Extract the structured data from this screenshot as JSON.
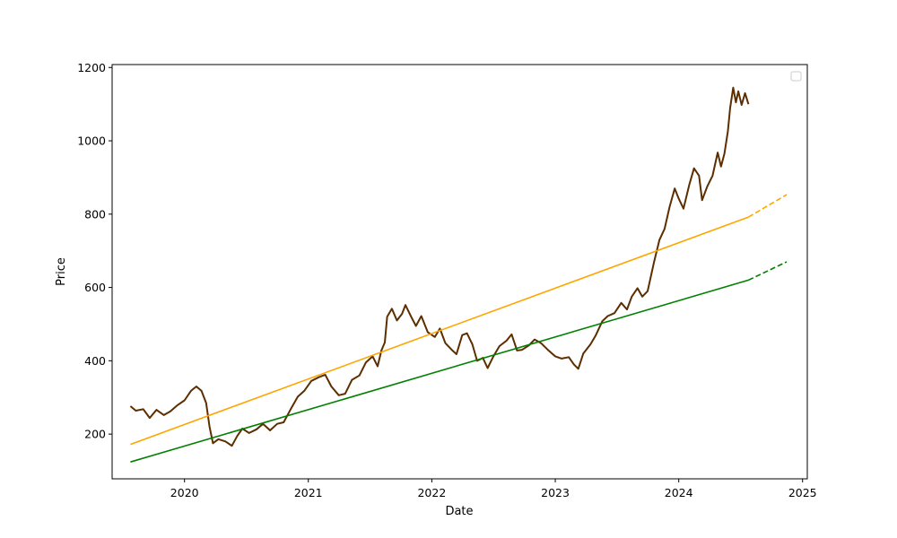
{
  "chart_data": {
    "type": "line",
    "xlabel": "Date",
    "ylabel": "Price",
    "xlim": [
      "2019-06-01",
      "2025-01-15"
    ],
    "ylim": [
      78,
      1208
    ],
    "x_ticks": [
      {
        "date": "2020-01-01",
        "label": "2020"
      },
      {
        "date": "2021-01-01",
        "label": "2021"
      },
      {
        "date": "2022-01-01",
        "label": "2022"
      },
      {
        "date": "2023-01-01",
        "label": "2023"
      },
      {
        "date": "2024-01-01",
        "label": "2024"
      },
      {
        "date": "2025-01-01",
        "label": "2025"
      }
    ],
    "y_ticks": [
      200,
      400,
      600,
      800,
      1000,
      1200
    ],
    "grid": false,
    "legend": {
      "position": "top-right",
      "entries": []
    },
    "colors": {
      "price": "#5c2e00",
      "upper_trend": "#ffa500",
      "lower_trend": "#008000"
    },
    "series": [
      {
        "role": "price",
        "style": "solid",
        "points": [
          [
            "2019-07-25",
            276
          ],
          [
            "2019-08-10",
            264
          ],
          [
            "2019-09-01",
            268
          ],
          [
            "2019-09-20",
            244
          ],
          [
            "2019-10-10",
            266
          ],
          [
            "2019-11-01",
            252
          ],
          [
            "2019-11-20",
            262
          ],
          [
            "2019-12-10",
            278
          ],
          [
            "2020-01-01",
            292
          ],
          [
            "2020-01-20",
            318
          ],
          [
            "2020-02-05",
            330
          ],
          [
            "2020-02-20",
            318
          ],
          [
            "2020-03-05",
            285
          ],
          [
            "2020-03-15",
            220
          ],
          [
            "2020-03-25",
            175
          ],
          [
            "2020-04-10",
            186
          ],
          [
            "2020-05-01",
            180
          ],
          [
            "2020-05-20",
            168
          ],
          [
            "2020-06-05",
            195
          ],
          [
            "2020-06-20",
            215
          ],
          [
            "2020-07-10",
            203
          ],
          [
            "2020-08-01",
            213
          ],
          [
            "2020-08-20",
            228
          ],
          [
            "2020-09-10",
            210
          ],
          [
            "2020-10-01",
            228
          ],
          [
            "2020-10-20",
            232
          ],
          [
            "2020-11-10",
            268
          ],
          [
            "2020-12-01",
            302
          ],
          [
            "2020-12-20",
            318
          ],
          [
            "2021-01-10",
            345
          ],
          [
            "2021-02-01",
            355
          ],
          [
            "2021-02-20",
            362
          ],
          [
            "2021-03-10",
            330
          ],
          [
            "2021-04-01",
            306
          ],
          [
            "2021-04-20",
            310
          ],
          [
            "2021-05-10",
            348
          ],
          [
            "2021-06-01",
            360
          ],
          [
            "2021-06-20",
            395
          ],
          [
            "2021-07-10",
            412
          ],
          [
            "2021-07-25",
            385
          ],
          [
            "2021-08-05",
            428
          ],
          [
            "2021-08-15",
            450
          ],
          [
            "2021-08-22",
            520
          ],
          [
            "2021-09-05",
            542
          ],
          [
            "2021-09-20",
            510
          ],
          [
            "2021-10-05",
            528
          ],
          [
            "2021-10-15",
            552
          ],
          [
            "2021-11-01",
            520
          ],
          [
            "2021-11-15",
            495
          ],
          [
            "2021-12-01",
            522
          ],
          [
            "2021-12-20",
            478
          ],
          [
            "2022-01-10",
            465
          ],
          [
            "2022-01-25",
            488
          ],
          [
            "2022-02-10",
            448
          ],
          [
            "2022-03-01",
            430
          ],
          [
            "2022-03-15",
            418
          ],
          [
            "2022-04-01",
            470
          ],
          [
            "2022-04-15",
            475
          ],
          [
            "2022-05-01",
            445
          ],
          [
            "2022-05-15",
            400
          ],
          [
            "2022-06-01",
            408
          ],
          [
            "2022-06-15",
            380
          ],
          [
            "2022-07-01",
            410
          ],
          [
            "2022-07-20",
            440
          ],
          [
            "2022-08-10",
            455
          ],
          [
            "2022-08-25",
            472
          ],
          [
            "2022-09-10",
            428
          ],
          [
            "2022-09-25",
            430
          ],
          [
            "2022-10-15",
            442
          ],
          [
            "2022-11-01",
            458
          ],
          [
            "2022-11-20",
            448
          ],
          [
            "2022-12-10",
            430
          ],
          [
            "2023-01-01",
            412
          ],
          [
            "2023-01-20",
            406
          ],
          [
            "2023-02-10",
            410
          ],
          [
            "2023-02-25",
            390
          ],
          [
            "2023-03-10",
            378
          ],
          [
            "2023-03-25",
            420
          ],
          [
            "2023-04-15",
            445
          ],
          [
            "2023-05-01",
            470
          ],
          [
            "2023-05-20",
            508
          ],
          [
            "2023-06-05",
            522
          ],
          [
            "2023-06-25",
            530
          ],
          [
            "2023-07-15",
            558
          ],
          [
            "2023-08-01",
            540
          ],
          [
            "2023-08-15",
            575
          ],
          [
            "2023-09-01",
            598
          ],
          [
            "2023-09-15",
            575
          ],
          [
            "2023-10-01",
            590
          ],
          [
            "2023-10-20",
            670
          ],
          [
            "2023-11-05",
            730
          ],
          [
            "2023-11-20",
            760
          ],
          [
            "2023-12-05",
            820
          ],
          [
            "2023-12-20",
            870
          ],
          [
            "2024-01-01",
            842
          ],
          [
            "2024-01-15",
            815
          ],
          [
            "2024-02-01",
            880
          ],
          [
            "2024-02-15",
            925
          ],
          [
            "2024-03-01",
            905
          ],
          [
            "2024-03-10",
            838
          ],
          [
            "2024-03-25",
            875
          ],
          [
            "2024-04-10",
            905
          ],
          [
            "2024-04-25",
            968
          ],
          [
            "2024-05-05",
            930
          ],
          [
            "2024-05-15",
            965
          ],
          [
            "2024-05-25",
            1025
          ],
          [
            "2024-06-01",
            1090
          ],
          [
            "2024-06-10",
            1145
          ],
          [
            "2024-06-18",
            1105
          ],
          [
            "2024-06-25",
            1135
          ],
          [
            "2024-07-05",
            1098
          ],
          [
            "2024-07-15",
            1130
          ],
          [
            "2024-07-25",
            1100
          ]
        ]
      },
      {
        "role": "upper_trend",
        "style": "solid",
        "points": [
          [
            "2019-07-25",
            172
          ],
          [
            "2024-07-25",
            792
          ]
        ]
      },
      {
        "role": "upper_trend_forecast",
        "style": "dashed",
        "points": [
          [
            "2024-07-25",
            792
          ],
          [
            "2024-11-15",
            853
          ]
        ]
      },
      {
        "role": "lower_trend",
        "style": "solid",
        "points": [
          [
            "2019-07-25",
            124
          ],
          [
            "2024-07-25",
            620
          ]
        ]
      },
      {
        "role": "lower_trend_forecast",
        "style": "dashed",
        "points": [
          [
            "2024-07-25",
            620
          ],
          [
            "2024-11-15",
            670
          ]
        ]
      }
    ]
  }
}
